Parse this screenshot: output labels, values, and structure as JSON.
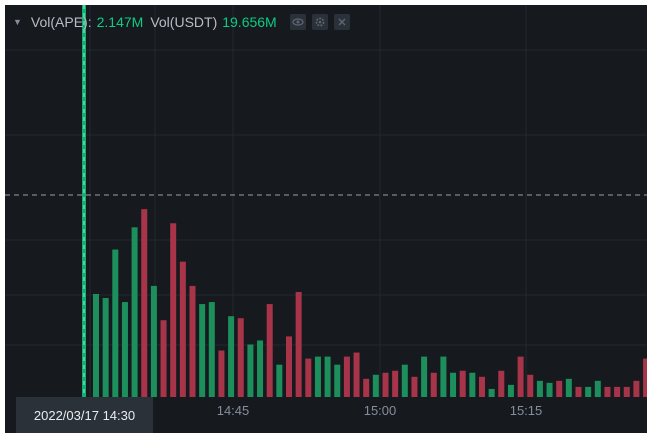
{
  "legend": {
    "vol_base_label": "Vol(APE):",
    "vol_base_value": "2.147M",
    "vol_quote_label": "Vol(USDT)",
    "vol_quote_value": "19.656M",
    "icons": [
      "eye-icon",
      "gear-icon",
      "close-icon"
    ]
  },
  "crosshair": {
    "time_label": "2022/03/17 14:30"
  },
  "colors": {
    "background": "#161a1e",
    "up": "#0ecb81",
    "down": "#f6465d",
    "up_bar": "#1c8f5c",
    "down_bar": "#a8344a",
    "grid": "#232830",
    "text": "#848e9c"
  },
  "chart_data": {
    "type": "bar",
    "title": "",
    "x_ticks": [
      "14:45",
      "15:00",
      "15:15"
    ],
    "y_range": [
      0,
      100
    ],
    "crosshair_level": 100,
    "values": [
      51,
      49,
      73,
      47,
      84,
      93,
      55,
      38,
      86,
      67,
      55,
      46,
      47,
      23,
      40,
      39,
      26,
      28,
      46,
      16,
      30,
      52,
      19,
      20,
      20,
      16,
      20,
      22,
      9,
      11,
      12,
      13,
      16,
      10,
      20,
      12,
      20,
      12,
      13,
      12,
      10,
      4,
      13,
      6,
      20,
      11,
      8,
      7,
      8,
      9,
      5,
      5,
      8,
      5,
      5,
      5,
      8,
      19,
      21
    ],
    "up": [
      true,
      true,
      true,
      true,
      true,
      false,
      true,
      false,
      false,
      false,
      false,
      true,
      true,
      false,
      true,
      false,
      true,
      true,
      false,
      true,
      false,
      false,
      false,
      true,
      true,
      true,
      false,
      false,
      false,
      true,
      false,
      false,
      true,
      false,
      true,
      false,
      true,
      true,
      false,
      true,
      false,
      true,
      false,
      true,
      false,
      false,
      true,
      true,
      false,
      true,
      false,
      true,
      true,
      false,
      false,
      false,
      false,
      false,
      false
    ]
  }
}
